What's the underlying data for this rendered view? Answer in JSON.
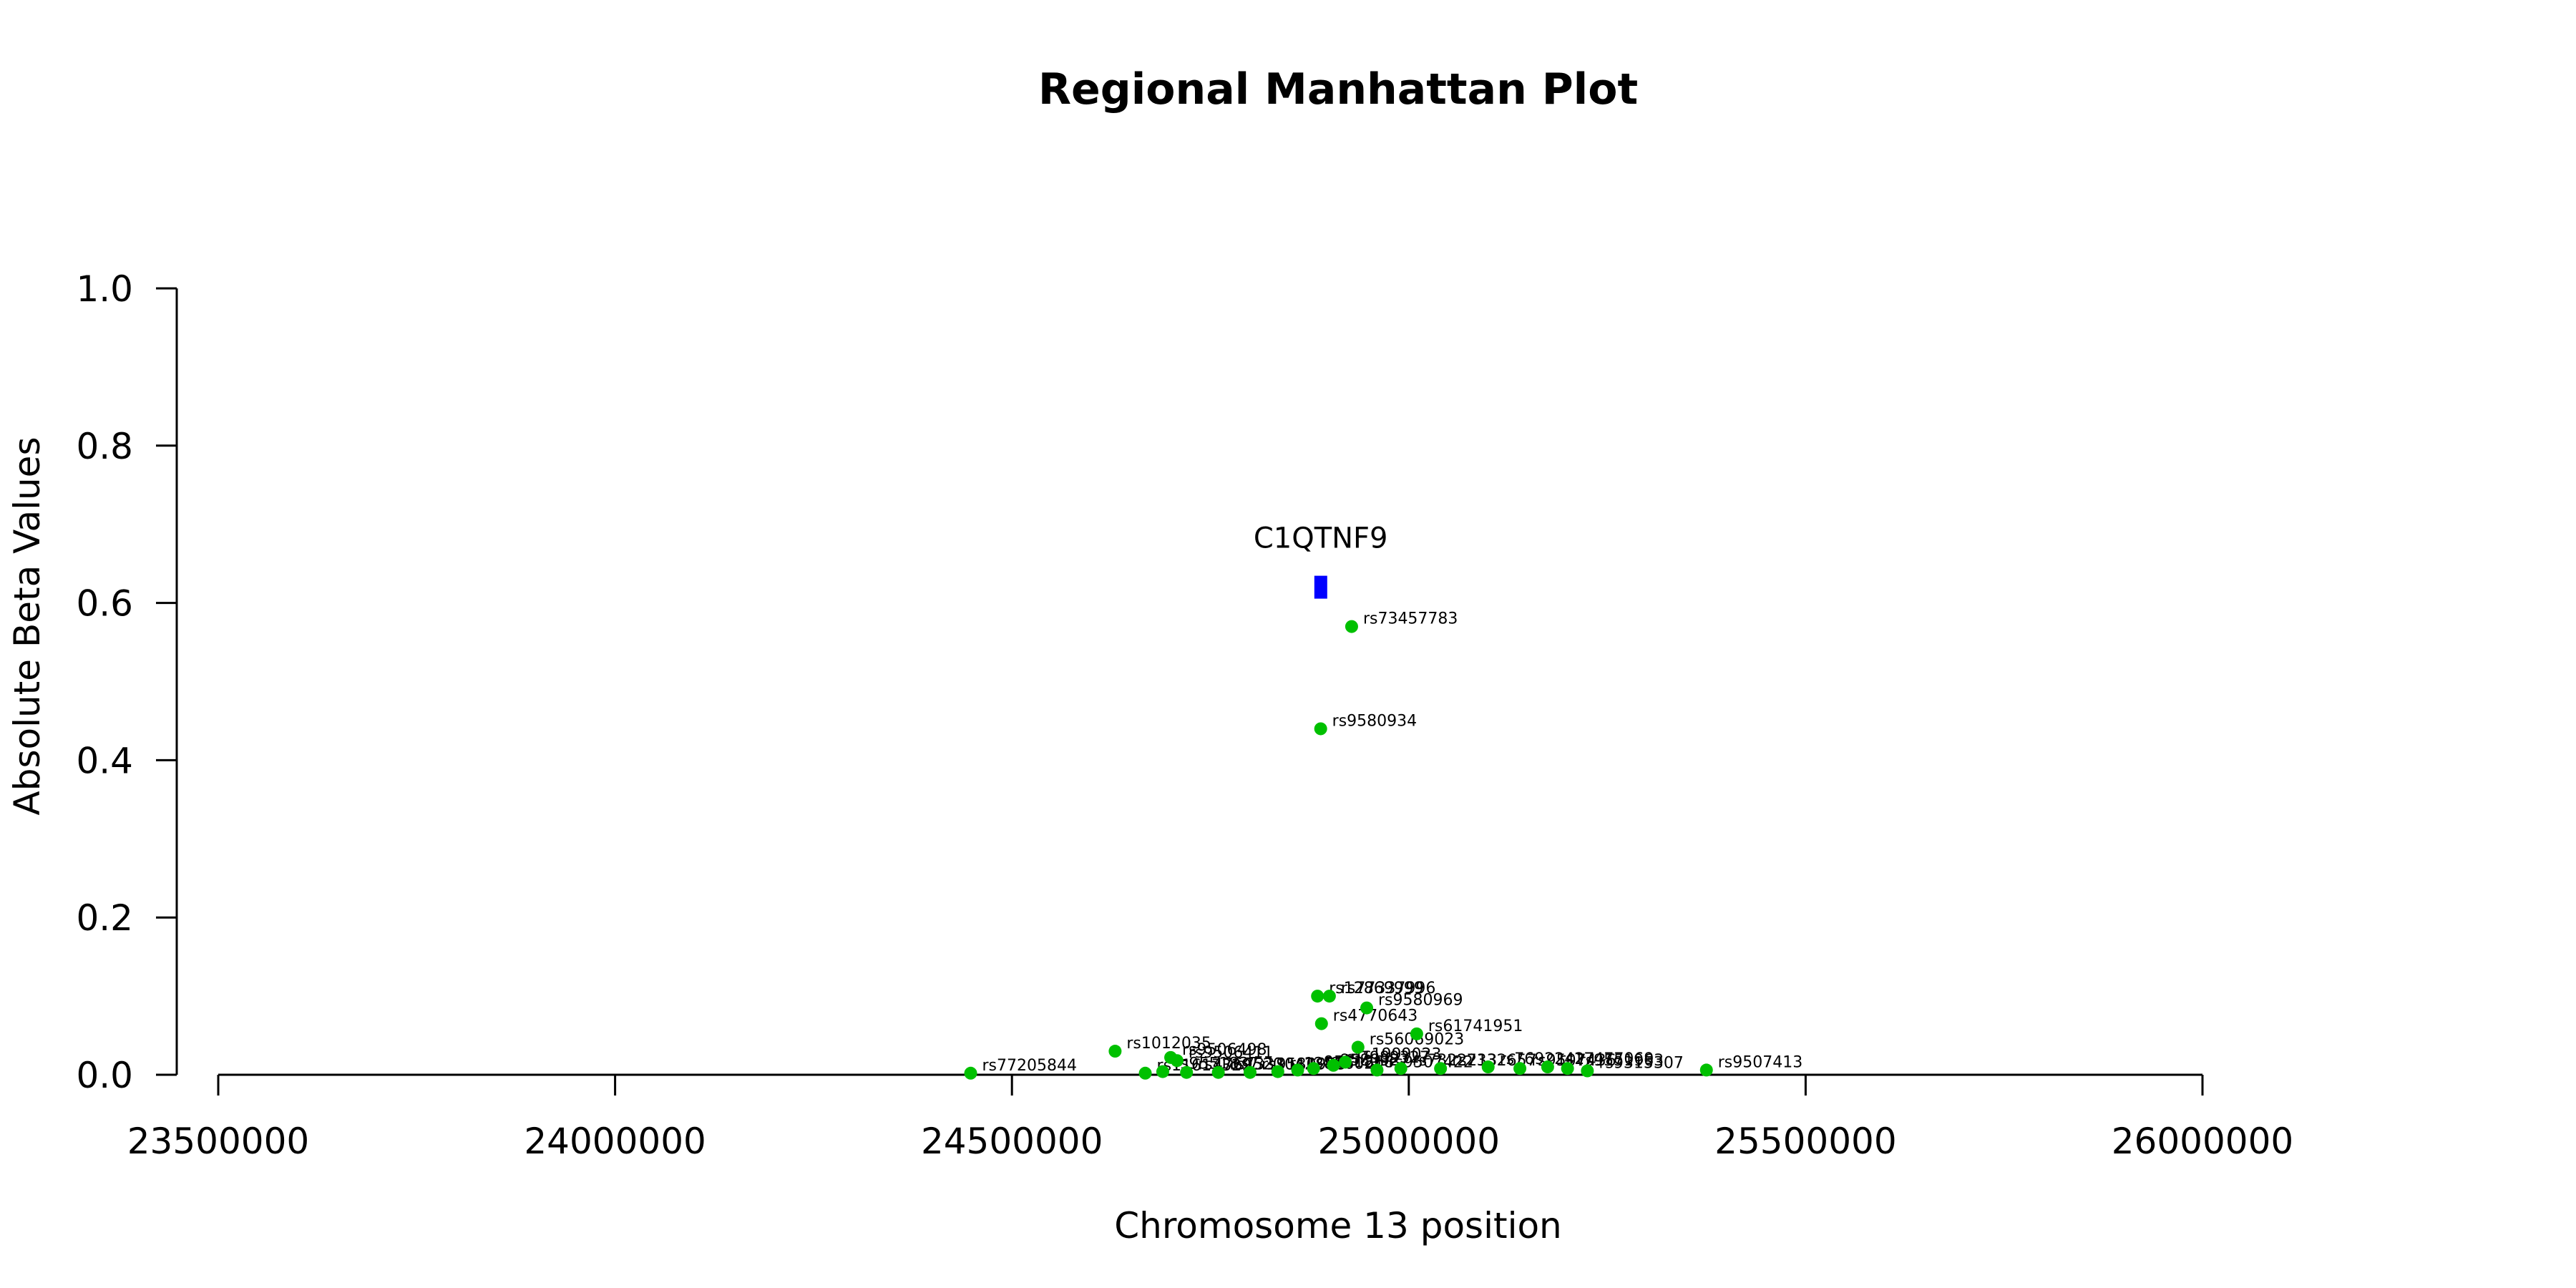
{
  "chart_data": {
    "type": "scatter",
    "title": "Regional Manhattan Plot",
    "xlabel": "Chromosome 13 position",
    "ylabel": "Absolute Beta Values",
    "xlim": [
      23500000,
      26000000
    ],
    "ylim": [
      0,
      1.0
    ],
    "xticks": [
      "23500000",
      "24000000",
      "24500000",
      "25000000",
      "25500000",
      "26000000"
    ],
    "yticks": [
      "0.0",
      "0.2",
      "0.4",
      "0.6",
      "0.8",
      "1.0"
    ],
    "grid": false,
    "point_color": "#00c000",
    "gene_color": "#0000ff",
    "gene": {
      "name": "C1QTNF9",
      "start": 24881000,
      "end": 24897000,
      "y": 0.62
    },
    "points": [
      {
        "label": "rs73457783",
        "x": 24928000,
        "y": 0.57
      },
      {
        "label": "rs9580934",
        "x": 24889000,
        "y": 0.44
      },
      {
        "label": "rs12869999",
        "x": 24885000,
        "y": 0.1
      },
      {
        "label": "rs77337996",
        "x": 24900000,
        "y": 0.1
      },
      {
        "label": "rs9580969",
        "x": 24947000,
        "y": 0.085
      },
      {
        "label": "rs4770643",
        "x": 24890000,
        "y": 0.065
      },
      {
        "label": "rs61741951",
        "x": 25010000,
        "y": 0.052
      },
      {
        "label": "rs56069023",
        "x": 24936000,
        "y": 0.035
      },
      {
        "label": "rs1012035",
        "x": 24630000,
        "y": 0.03
      },
      {
        "label": "rs9506498",
        "x": 24700000,
        "y": 0.022
      },
      {
        "label": "rs9506411",
        "x": 24708000,
        "y": 0.018
      },
      {
        "label": "rs9507413",
        "x": 25375000,
        "y": 0.006
      },
      {
        "label": "rs77205844",
        "x": 24448000,
        "y": 0.002
      },
      {
        "label": "rs11617329",
        "x": 24668000,
        "y": 0.002
      },
      {
        "label": "rs9551837",
        "x": 24690000,
        "y": 0.004
      },
      {
        "label": "rs4769520",
        "x": 24720000,
        "y": 0.003
      },
      {
        "label": "rs7333042",
        "x": 24760000,
        "y": 0.003
      },
      {
        "label": "rs9580955",
        "x": 24800000,
        "y": 0.003
      },
      {
        "label": "rs12866021",
        "x": 24835000,
        "y": 0.004
      },
      {
        "label": "rs9551868",
        "x": 24860000,
        "y": 0.006
      },
      {
        "label": "rs9580927",
        "x": 24880000,
        "y": 0.008
      },
      {
        "label": "rs7989327",
        "x": 24905000,
        "y": 0.012
      },
      {
        "label": "rs1999023",
        "x": 24920000,
        "y": 0.016
      },
      {
        "label": "rs9507422",
        "x": 24960000,
        "y": 0.006
      },
      {
        "label": "rs7322213",
        "x": 24990000,
        "y": 0.008
      },
      {
        "label": "rs7332657",
        "x": 25040000,
        "y": 0.008
      },
      {
        "label": "rs76922427",
        "x": 25100000,
        "y": 0.01
      },
      {
        "label": "rs9507436",
        "x": 25140000,
        "y": 0.008
      },
      {
        "label": "rs17477069",
        "x": 25175000,
        "y": 0.01
      },
      {
        "label": "rs9551963",
        "x": 25200000,
        "y": 0.008
      },
      {
        "label": "rs9315307",
        "x": 25225000,
        "y": 0.005
      }
    ]
  }
}
